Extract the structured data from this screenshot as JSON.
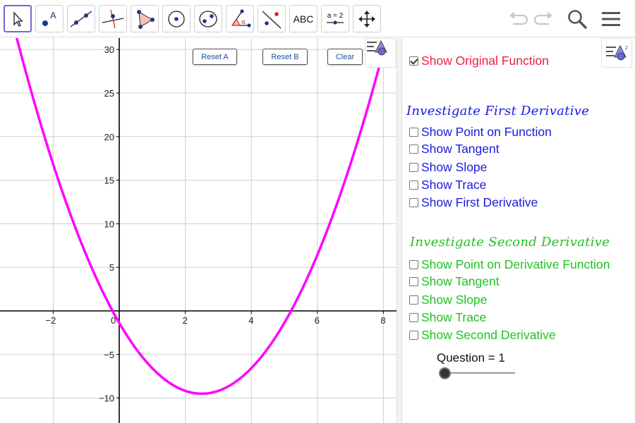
{
  "toolbar": {
    "tools": [
      {
        "name": "move-tool"
      },
      {
        "name": "point-tool"
      },
      {
        "name": "line-tool"
      },
      {
        "name": "perpendicular-line-tool"
      },
      {
        "name": "polygon-tool"
      },
      {
        "name": "circle-center-point-tool"
      },
      {
        "name": "ellipse-tool"
      },
      {
        "name": "angle-tool"
      },
      {
        "name": "reflect-tool"
      },
      {
        "name": "text-tool",
        "label": "ABC"
      },
      {
        "name": "slider-tool",
        "label": "a = 2"
      },
      {
        "name": "move-graphics-view-tool"
      }
    ],
    "right": [
      "undo-icon",
      "redo-icon",
      "search-icon",
      "menu-icon"
    ]
  },
  "graphics": {
    "buttons": {
      "reset_a": "Reset A",
      "reset_b": "Reset B",
      "clear": "Clear"
    },
    "axes": {
      "x_ticks": [
        "−2",
        "0",
        "2",
        "4",
        "6",
        "8"
      ],
      "y_ticks": [
        "30",
        "25",
        "20",
        "15",
        "10",
        "5",
        "−5",
        "−10"
      ]
    },
    "colors": {
      "function_curve": "#ff00ff",
      "grid": "#d0d0d0",
      "axis": "#000000"
    }
  },
  "panel": {
    "original": {
      "label": "Show Original Function",
      "checked": true
    },
    "first_heading": "Investigate First Derivative",
    "first": [
      {
        "label": "Show Point on Function",
        "checked": false
      },
      {
        "label": "Show Tangent",
        "checked": false
      },
      {
        "label": "Show Slope",
        "checked": false
      },
      {
        "label": "Show Trace",
        "checked": false
      },
      {
        "label": "Show First Derivative",
        "checked": false
      }
    ],
    "second_heading": "Investigate Second Derivative",
    "second": [
      {
        "label": "Show Point on Derivative Function",
        "checked": false
      },
      {
        "label": "Show Tangent",
        "checked": false
      },
      {
        "label": "Show Slope",
        "checked": false
      },
      {
        "label": "Show Trace",
        "checked": false
      },
      {
        "label": "Show Second Derivative",
        "checked": false
      }
    ],
    "slider": {
      "label": "Question = 1",
      "value": 1
    }
  }
}
